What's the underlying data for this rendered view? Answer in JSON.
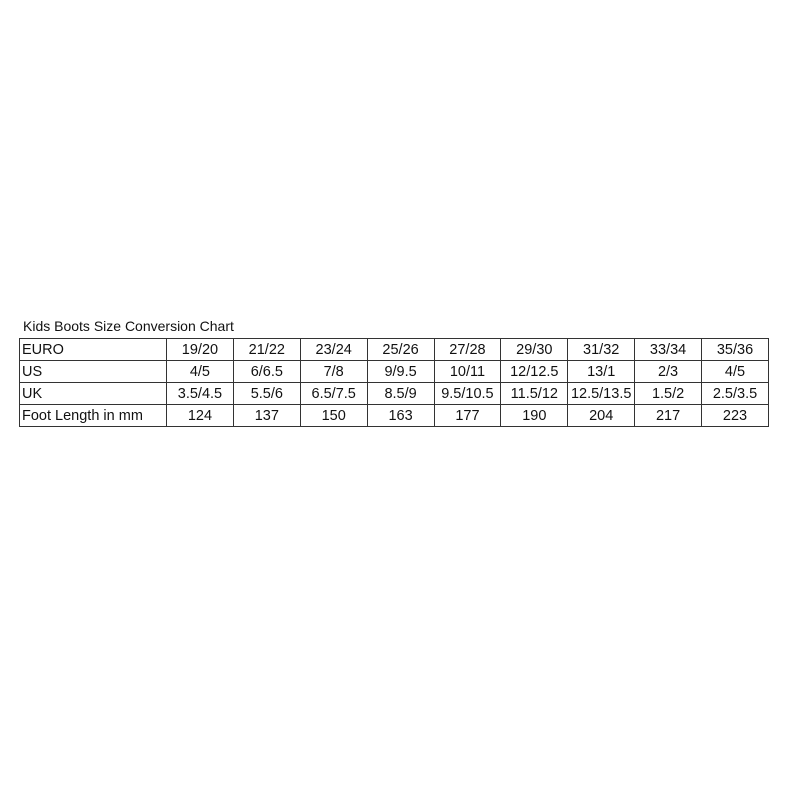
{
  "title": "Kids Boots Size Conversion Chart",
  "rows": [
    {
      "label": "EURO",
      "values": [
        "19/20",
        "21/22",
        "23/24",
        "25/26",
        "27/28",
        "29/30",
        "31/32",
        "33/34",
        "35/36"
      ]
    },
    {
      "label": "US",
      "values": [
        "4/5",
        "6/6.5",
        "7/8",
        "9/9.5",
        "10/11",
        "12/12.5",
        "13/1",
        "2/3",
        "4/5"
      ]
    },
    {
      "label": "UK",
      "values": [
        "3.5/4.5",
        "5.5/6",
        "6.5/7.5",
        "8.5/9",
        "9.5/10.5",
        "11.5/12",
        "12.5/13.5",
        "1.5/2",
        "2.5/3.5"
      ]
    },
    {
      "label": "Foot Length in mm",
      "values": [
        "124",
        "137",
        "150",
        "163",
        "177",
        "190",
        "204",
        "217",
        "223"
      ]
    }
  ]
}
